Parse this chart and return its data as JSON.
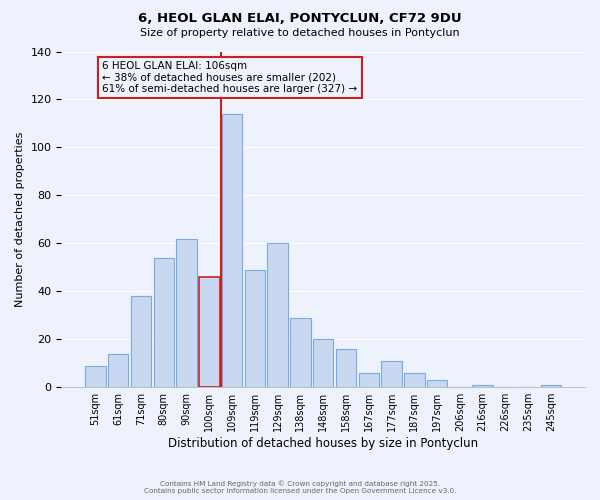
{
  "title": "6, HEOL GLAN ELAI, PONTYCLUN, CF72 9DU",
  "subtitle": "Size of property relative to detached houses in Pontyclun",
  "xlabel": "Distribution of detached houses by size in Pontyclun",
  "ylabel": "Number of detached properties",
  "bar_labels": [
    "51sqm",
    "61sqm",
    "71sqm",
    "80sqm",
    "90sqm",
    "100sqm",
    "109sqm",
    "119sqm",
    "129sqm",
    "138sqm",
    "148sqm",
    "158sqm",
    "167sqm",
    "177sqm",
    "187sqm",
    "197sqm",
    "206sqm",
    "216sqm",
    "226sqm",
    "235sqm",
    "245sqm"
  ],
  "bar_values": [
    9,
    14,
    38,
    54,
    62,
    46,
    114,
    49,
    60,
    29,
    20,
    16,
    6,
    11,
    6,
    3,
    0,
    1,
    0,
    0,
    1
  ],
  "bar_color": "#c8d8f0",
  "bar_edge_color": "#7aaae0",
  "highlight_bar_index": 5,
  "highlight_bar_edge_color": "#cc2020",
  "highlight_line_color": "#cc2020",
  "ylim": [
    0,
    140
  ],
  "yticks": [
    0,
    20,
    40,
    60,
    80,
    100,
    120,
    140
  ],
  "annotation_line1": "6 HEOL GLAN ELAI: 106sqm",
  "annotation_line2": "← 38% of detached houses are smaller (202)",
  "annotation_line3": "61% of semi-detached houses are larger (327) →",
  "annotation_box_edge_color": "#cc2020",
  "background_color": "#eef2fc",
  "grid_color": "#ffffff",
  "footer_line1": "Contains HM Land Registry data © Crown copyright and database right 2025.",
  "footer_line2": "Contains public sector information licensed under the Open Government Licence v3.0."
}
